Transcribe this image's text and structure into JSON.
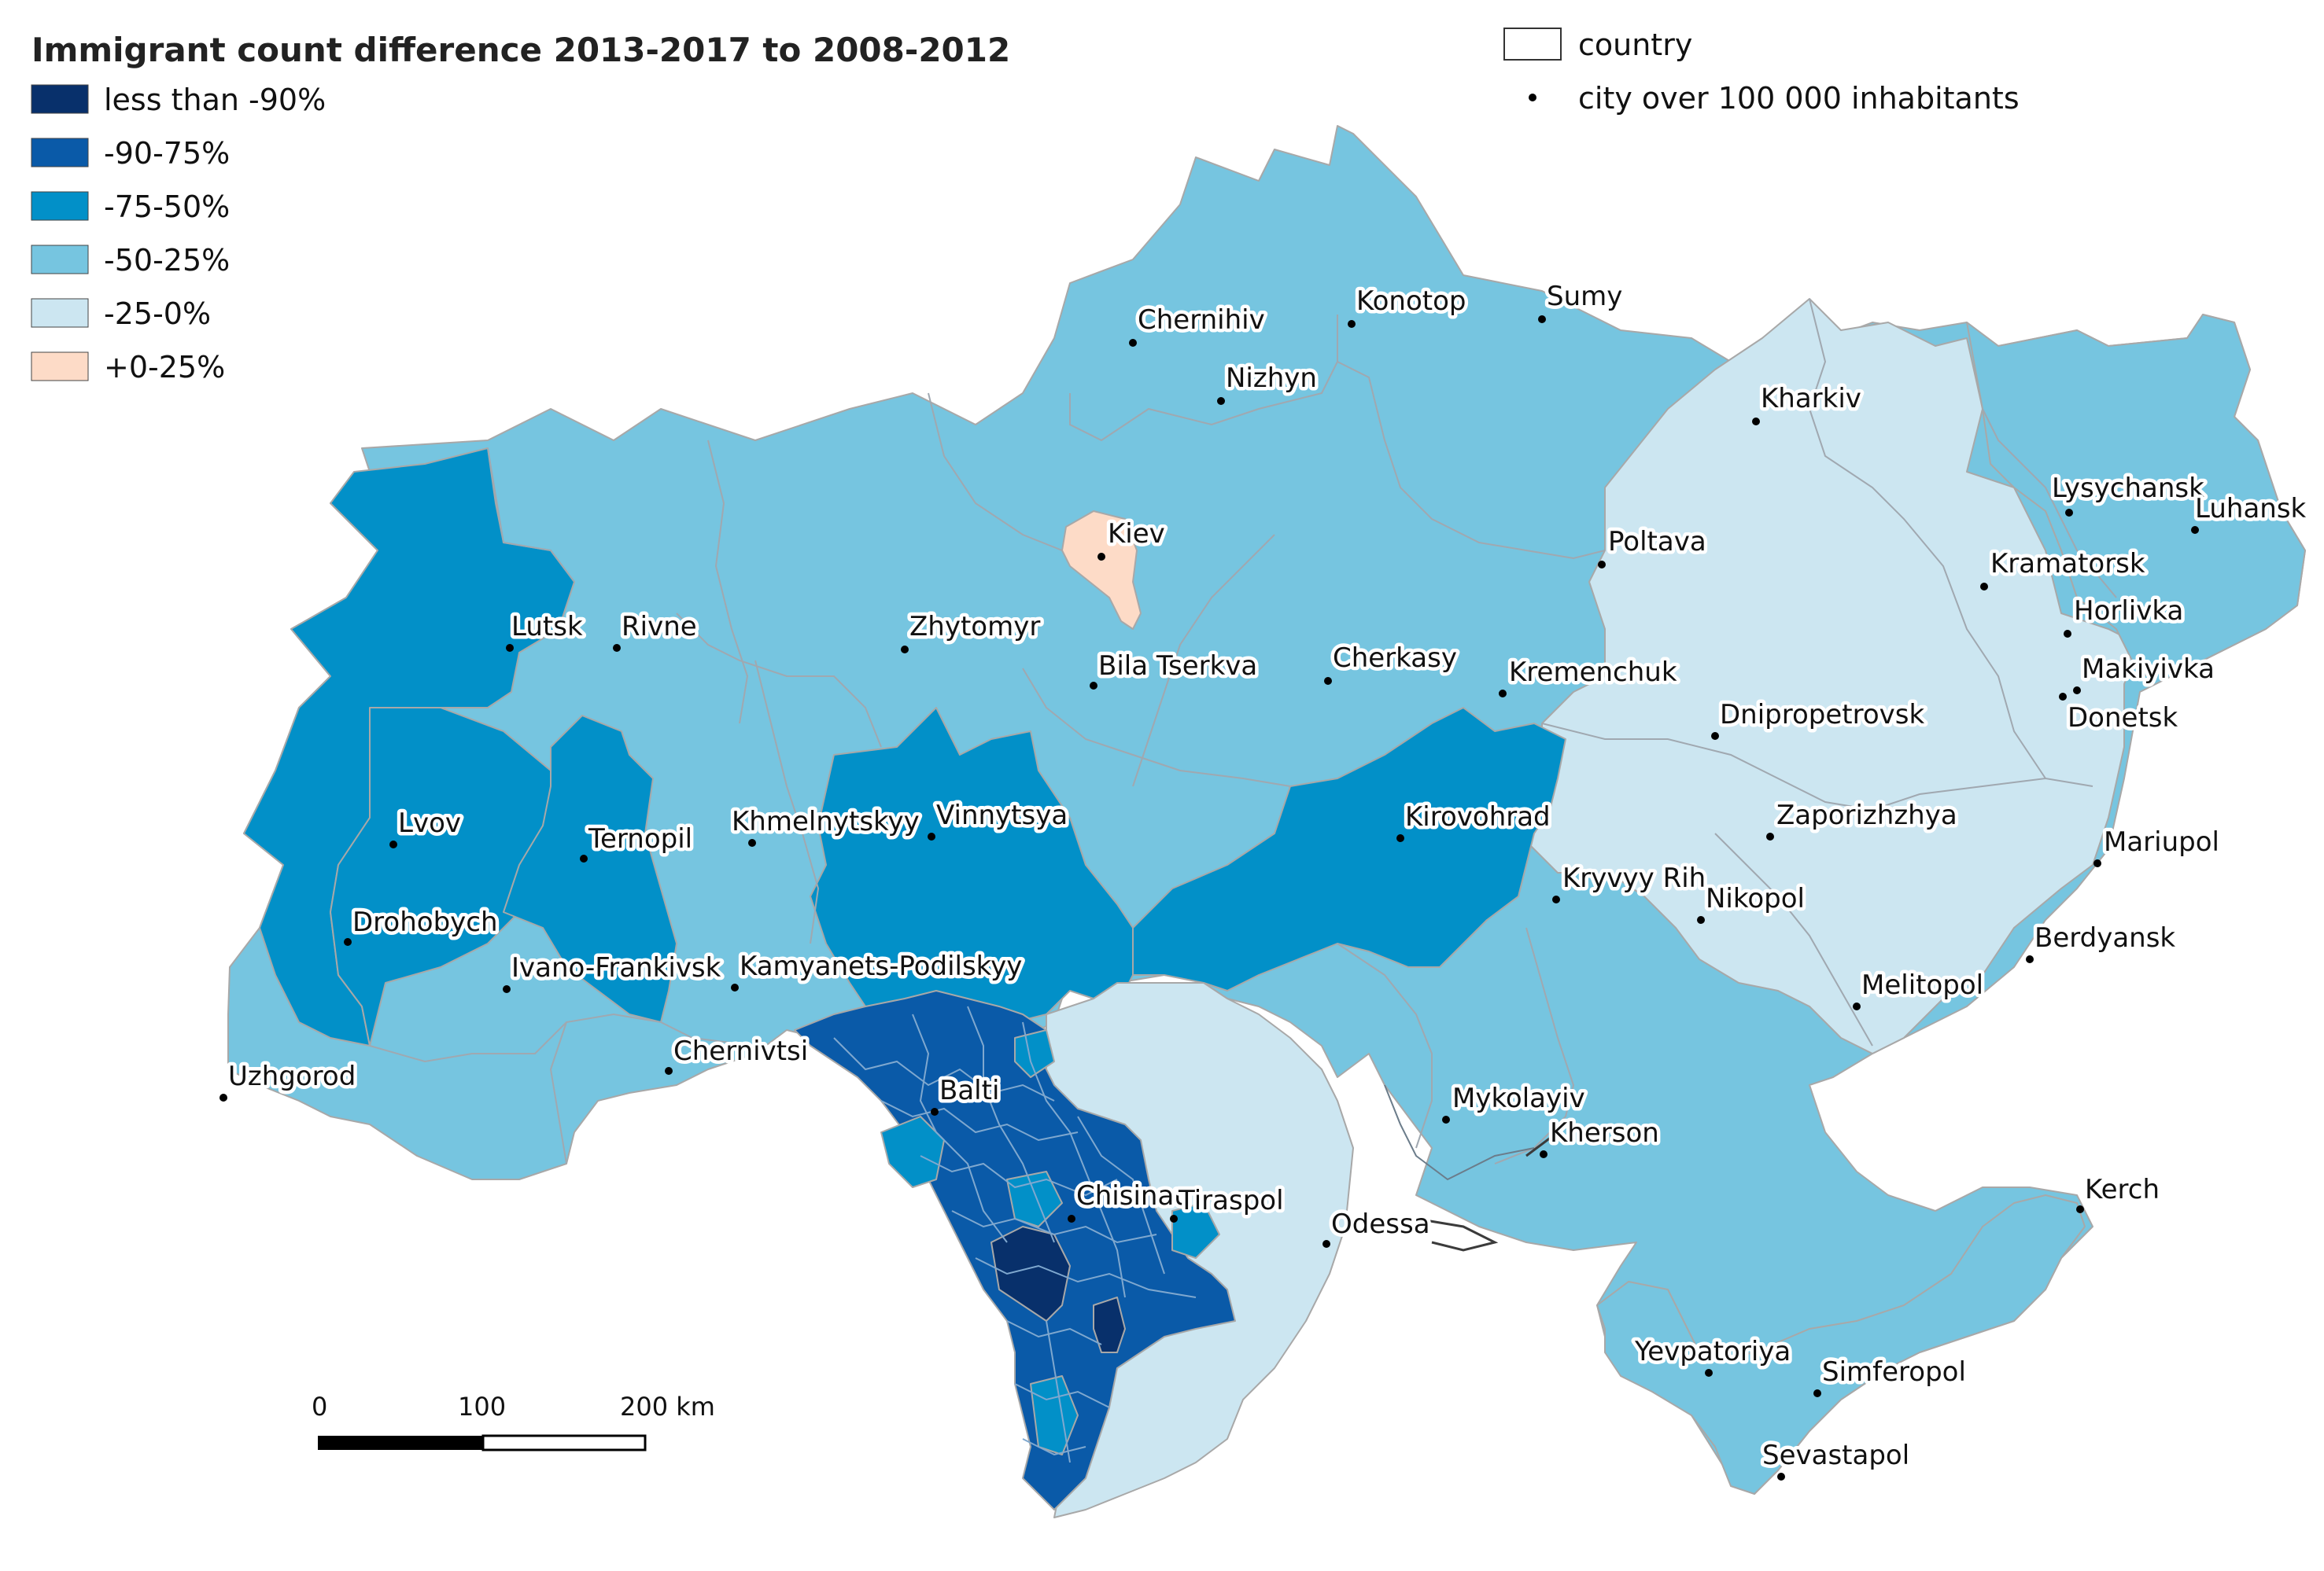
{
  "legend": {
    "title": "Immigrant count difference 2013-2017 to 2008-2012",
    "classes": [
      {
        "label": "less than -90%",
        "color": "#08306b"
      },
      {
        "label": "-90-75%",
        "color": "#0a5aa8"
      },
      {
        "label": "-75-50%",
        "color": "#0290c8"
      },
      {
        "label": "-50-25%",
        "color": "#76c5e0"
      },
      {
        "label": "-25-0%",
        "color": "#cce6f1"
      },
      {
        "label": "+0-25%",
        "color": "#fddbc7"
      }
    ],
    "country_label": "country",
    "city_label": "city over 100 000 inhabitants"
  },
  "scale_bar": {
    "labels": [
      "0",
      "100",
      "200 km"
    ]
  },
  "cities": [
    {
      "name": "Chernihiv"
    },
    {
      "name": "Konotop"
    },
    {
      "name": "Sumy"
    },
    {
      "name": "Nizhyn"
    },
    {
      "name": "Kharkiv"
    },
    {
      "name": "Kiev"
    },
    {
      "name": "Lysychansk"
    },
    {
      "name": "Luhansk"
    },
    {
      "name": "Poltava"
    },
    {
      "name": "Kramatorsk"
    },
    {
      "name": "Lutsk"
    },
    {
      "name": "Rivne"
    },
    {
      "name": "Zhytomyr"
    },
    {
      "name": "Horlivka"
    },
    {
      "name": "Bila Tserkva"
    },
    {
      "name": "Cherkasy"
    },
    {
      "name": "Makiyivka"
    },
    {
      "name": "Kremenchuk"
    },
    {
      "name": "Dnipropetrovsk"
    },
    {
      "name": "Donetsk"
    },
    {
      "name": "Lvov"
    },
    {
      "name": "Vinnytsya"
    },
    {
      "name": "Kirovohrad"
    },
    {
      "name": "Zaporizhzhya"
    },
    {
      "name": "Ternopil"
    },
    {
      "name": "Khmelnytskyy"
    },
    {
      "name": "Mariupol"
    },
    {
      "name": "Kryvyy Rih"
    },
    {
      "name": "Nikopol"
    },
    {
      "name": "Drohobych"
    },
    {
      "name": "Berdyansk"
    },
    {
      "name": "Ivano-Frankivsk"
    },
    {
      "name": "Kamyanets-Podilskyy"
    },
    {
      "name": "Melitopol"
    },
    {
      "name": "Chernivtsi"
    },
    {
      "name": "Uzhgorod"
    },
    {
      "name": "Balti"
    },
    {
      "name": "Mykolayiv"
    },
    {
      "name": "Kherson"
    },
    {
      "name": "Chisinau"
    },
    {
      "name": "Tiraspol"
    },
    {
      "name": "Odessa"
    },
    {
      "name": "Kerch"
    },
    {
      "name": "Yevpatoriya"
    },
    {
      "name": "Simferopol"
    },
    {
      "name": "Sevastapol"
    }
  ]
}
